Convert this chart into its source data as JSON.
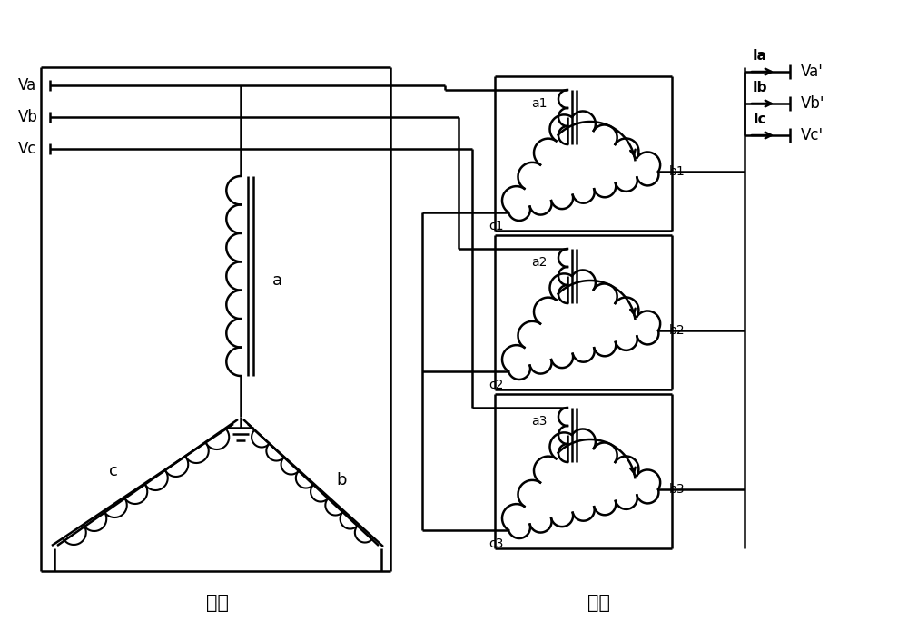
{
  "background": "#ffffff",
  "line_color": "#000000",
  "bottom_labels": [
    "原边",
    "副边"
  ],
  "fig_width": 10.0,
  "fig_height": 6.84,
  "primary_input_labels": [
    "Va",
    "Vb",
    "Vc"
  ],
  "secondary_output_labels": [
    "Va'",
    "Vb'",
    "Vc'"
  ],
  "current_labels": [
    "Ia",
    "Ib",
    "Ic"
  ],
  "primary_winding_labels": [
    "a",
    "b",
    "c"
  ],
  "secondary_winding_labels": [
    "a1",
    "b1",
    "c1",
    "a2",
    "b2",
    "c2",
    "a3",
    "b3",
    "c3"
  ]
}
